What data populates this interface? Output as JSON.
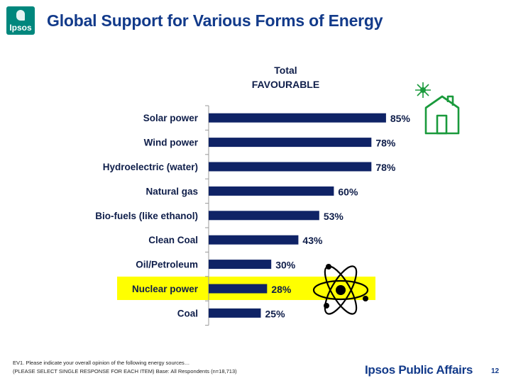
{
  "logo": {
    "text": "Ipsos"
  },
  "title": "Global Support for Various Forms of Energy",
  "chart_heading": {
    "line1": "Total",
    "line2": "FAVOURABLE"
  },
  "chart_data": {
    "type": "bar",
    "orientation": "horizontal",
    "categories": [
      "Solar power",
      "Wind power",
      "Hydroelectric (water)",
      "Natural gas",
      "Bio-fuels (like ethanol)",
      "Clean Coal",
      "Oil/Petroleum",
      "Nuclear power",
      "Coal"
    ],
    "values": [
      85,
      78,
      78,
      60,
      53,
      43,
      30,
      28,
      25
    ],
    "value_labels": [
      "85%",
      "78%",
      "78%",
      "60%",
      "53%",
      "43%",
      "30%",
      "28%",
      "25%"
    ],
    "highlighted_category": "Nuclear power",
    "xlim": [
      0,
      100
    ],
    "grid": false,
    "bar_color": "#0f2366",
    "highlight_color": "#ffff00"
  },
  "icons": {
    "house": "green-house-sun-icon",
    "atom": "atom-icon",
    "house_color": "#1a9a3c"
  },
  "footnote": {
    "line1": "EV1. Please indicate your overall opinion of the following energy sources…",
    "line2": "(PLEASE SELECT SINGLE RESPONSE FOR EACH ITEM)  Base: All Respondents (n=18,713)"
  },
  "brand": "Ipsos Public Affairs",
  "page_number": "12"
}
